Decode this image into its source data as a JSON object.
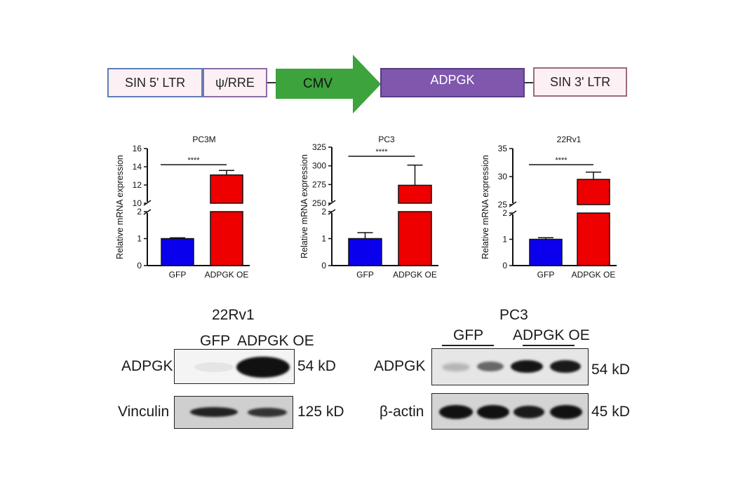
{
  "construct": {
    "elements": [
      {
        "label": "SIN 5' LTR",
        "fill": "#fdf0f5",
        "stroke": "#5b7fb5"
      },
      {
        "label": "ψ/RRE",
        "fill": "#fdf0f5",
        "stroke": "#8a6ca6"
      },
      {
        "label": "CMV",
        "fill": "#3da33d",
        "stroke": "#3da33d"
      },
      {
        "label": "ADPGK",
        "fill": "#7f57ad",
        "stroke": "#5a3c85"
      },
      {
        "label": "SIN 3' LTR",
        "fill": "#fdf0f5",
        "stroke": "#9c6a76"
      }
    ]
  },
  "chart_data": [
    {
      "type": "bar",
      "title": "PC3M",
      "ylabel": "Relative mRNA expression",
      "categories": [
        "GFP",
        "ADPGK OE"
      ],
      "values": [
        1.0,
        13.1
      ],
      "errors": [
        0.03,
        0.5
      ],
      "colors": [
        "#0a00ee",
        "#ee0000"
      ],
      "significance": "****",
      "axis_break": true,
      "lower_ylim": [
        0,
        2
      ],
      "upper_ylim": [
        10,
        16
      ],
      "lower_ticks": [
        0,
        1,
        2
      ],
      "upper_ticks": [
        10,
        12,
        14,
        16
      ]
    },
    {
      "type": "bar",
      "title": "PC3",
      "ylabel": "Relative mRNA expression",
      "categories": [
        "GFP",
        "ADPGK OE"
      ],
      "values": [
        1.0,
        274
      ],
      "errors": [
        0.22,
        27
      ],
      "colors": [
        "#0a00ee",
        "#ee0000"
      ],
      "significance": "****",
      "axis_break": true,
      "lower_ylim": [
        0,
        2
      ],
      "upper_ylim": [
        250,
        325
      ],
      "lower_ticks": [
        0,
        1,
        2
      ],
      "upper_ticks": [
        250,
        275,
        300,
        325
      ]
    },
    {
      "type": "bar",
      "title": "22Rv1",
      "ylabel": "Relative mRNA expression",
      "categories": [
        "GFP",
        "ADPGK OE"
      ],
      "values": [
        1.0,
        29.5
      ],
      "errors": [
        0.06,
        1.3
      ],
      "colors": [
        "#0a00ee",
        "#ee0000"
      ],
      "significance": "****",
      "axis_break": true,
      "lower_ylim": [
        0,
        2
      ],
      "upper_ylim": [
        25,
        35
      ],
      "lower_ticks": [
        0,
        1,
        2
      ],
      "upper_ticks": [
        25,
        30,
        35
      ]
    }
  ],
  "blots": {
    "left": {
      "title": "22Rv1",
      "groups": [
        "GFP",
        "ADPGK OE"
      ],
      "rows": [
        {
          "protein": "ADPGK",
          "size": "54 kD",
          "intensities": [
            0.05,
            1.0
          ]
        },
        {
          "protein": "Vinculin",
          "size": "125 kD",
          "intensities": [
            0.85,
            0.75
          ]
        }
      ]
    },
    "right": {
      "title": "PC3",
      "groups": [
        "GFP",
        "ADPGK OE"
      ],
      "rows": [
        {
          "protein": "ADPGK",
          "size": "54 kD",
          "intensities": [
            0.2,
            0.6,
            0.9,
            0.9
          ]
        },
        {
          "protein": "β-actin",
          "size": "45 kD",
          "intensities": [
            1.0,
            1.0,
            0.95,
            1.0
          ]
        }
      ]
    }
  }
}
